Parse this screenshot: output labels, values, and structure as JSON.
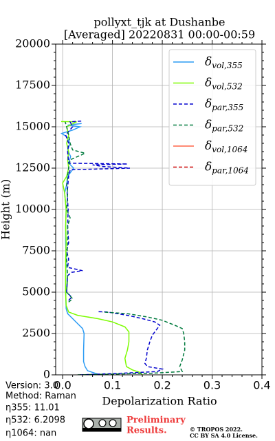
{
  "chart_data": {
    "type": "line",
    "title": "pollyxt_tjk at Dushanbe",
    "subtitle": "[Averaged] 20220831 00:00-00:59",
    "x_label": "Depolarization Ratio",
    "y_label": "Height (m)",
    "xlim": [
      -0.014,
      0.4
    ],
    "xticks": [
      {
        "value": 0,
        "label": "0.0"
      },
      0.1,
      0.2,
      0.3,
      0.4
    ],
    "ylim": [
      0,
      20000
    ],
    "yticks": [
      0,
      2500,
      5000,
      7500,
      10000,
      12500,
      15000,
      17500,
      20000
    ],
    "grid": true,
    "legend": "upper right",
    "series": [
      {
        "name": "δvol,355",
        "color": "#2b9bf4",
        "linestyle": "solid",
        "heights": [
          0,
          150,
          250,
          500,
          800,
          1500,
          2500,
          2800,
          3100,
          3400,
          3700,
          4000,
          5000,
          6000,
          7000,
          8000,
          9000,
          10000,
          11000,
          11500,
          12000,
          12500,
          12800,
          13200,
          13600,
          14000,
          14400,
          14600,
          14800,
          15000,
          15100,
          15200
        ],
        "values": [
          0.075,
          0.06,
          0.05,
          0.045,
          0.042,
          0.042,
          0.043,
          0.04,
          0.03,
          0.02,
          0.01,
          0.007,
          0.006,
          0.006,
          0.007,
          0.006,
          0.006,
          0.007,
          0.004,
          0.008,
          0.01,
          0.022,
          0.012,
          0.016,
          0.01,
          0.015,
          0.008,
          -0.002,
          0.02,
          0.035,
          0.01,
          0.038
        ]
      },
      {
        "name": "δvol,532",
        "color": "#7cfc00",
        "linestyle": "solid",
        "heights": [
          0,
          150,
          300,
          500,
          1000,
          1500,
          2000,
          2600,
          2900,
          3200,
          3400,
          3600,
          3800,
          4200,
          5000,
          6000,
          7000,
          8000,
          9000,
          10000,
          11000,
          11600,
          12000,
          12500,
          13000,
          13500,
          14000,
          14500,
          15000,
          15300,
          15320
        ],
        "values": [
          0.16,
          0.155,
          0.14,
          0.128,
          0.125,
          0.13,
          0.133,
          0.133,
          0.125,
          0.1,
          0.07,
          0.03,
          0.012,
          0.007,
          0.006,
          0.006,
          0.006,
          0.007,
          0.006,
          0.007,
          0.004,
          0.0,
          0.008,
          0.012,
          0.01,
          0.012,
          0.008,
          0.012,
          0.008,
          0.028,
          -0.003
        ]
      },
      {
        "name": "δpar,355",
        "color": "#0000cd",
        "linestyle": "dashed",
        "heights": [
          0,
          100,
          200,
          350,
          500,
          700,
          1000,
          1500,
          2000,
          2400,
          2800,
          3000,
          3200,
          3400,
          3600,
          3700,
          3800,
          3820,
          4100,
          4500,
          4700,
          5000,
          6000,
          6200,
          6300,
          6500,
          7000,
          7500,
          8000,
          9000,
          10000,
          11000,
          12000,
          12400,
          12500,
          12600,
          12700,
          12750,
          12800,
          13500,
          14000,
          14500,
          15000,
          15300,
          15350
        ],
        "values": [
          0.035,
          0.12,
          0.19,
          0.2,
          0.17,
          0.165,
          0.168,
          0.17,
          0.175,
          0.18,
          0.19,
          0.195,
          0.185,
          0.16,
          0.13,
          0.11,
          0.09,
          0.07,
          null,
          0.012,
          0.018,
          0.008,
          0.01,
          0.018,
          0.04,
          0.01,
          0.012,
          0.008,
          0.012,
          0.01,
          0.011,
          0.009,
          0.012,
          0.015,
          0.135,
          0.08,
          0.06,
          0.13,
          0.012,
          0.01,
          0.012,
          0.006,
          0.02,
          0.015,
          0.04
        ]
      },
      {
        "name": "δpar,532",
        "color": "#007a3d",
        "linestyle": "dashed",
        "heights": [
          0,
          100,
          200,
          500,
          900,
          1500,
          2000,
          2500,
          2800,
          3000,
          3300,
          3500,
          3700,
          3800,
          4100,
          4400,
          4600,
          5000,
          6000,
          7000,
          8000,
          9000,
          9500,
          10000,
          11000,
          11500,
          12000,
          12500,
          13000,
          13400,
          13600,
          14000,
          14500,
          15000,
          15300
        ],
        "values": [
          0.03,
          0.18,
          0.24,
          0.235,
          0.24,
          0.245,
          0.245,
          0.243,
          0.24,
          0.225,
          0.2,
          0.17,
          0.13,
          0.08,
          null,
          0.012,
          0.02,
          0.008,
          0.01,
          0.008,
          0.01,
          0.01,
          0.015,
          0.008,
          0.01,
          0.008,
          0.01,
          0.012,
          0.015,
          0.045,
          0.02,
          0.015,
          0.012,
          0.008,
          0.005
        ]
      },
      {
        "name": "δvol,1064",
        "color": "#ff6347",
        "linestyle": "solid",
        "heights": [],
        "values": []
      },
      {
        "name": "δpar,1064",
        "color": "#cc0000",
        "linestyle": "dashed",
        "heights": [],
        "values": []
      }
    ],
    "info": [
      "Version: 3.0",
      "Method: Raman",
      "η355:  11.01",
      "η532: 6.2098",
      "η1064:    nan"
    ],
    "preliminary": [
      "Preliminary",
      "Results."
    ],
    "copyright": [
      "© TROPOS 2022.",
      "CC BY SA 4.0 License."
    ]
  }
}
